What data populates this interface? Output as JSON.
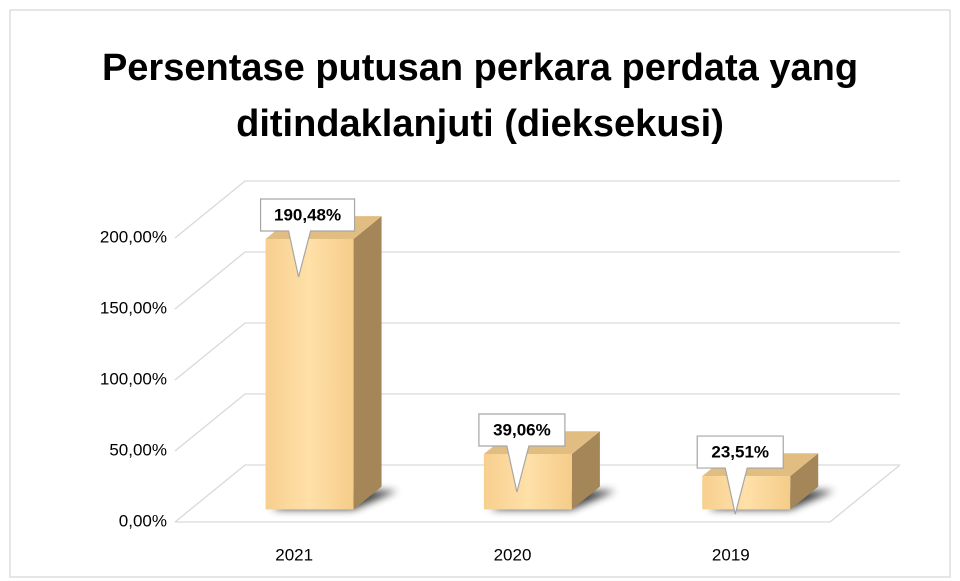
{
  "chart_data": {
    "type": "bar3d",
    "title": "Persentase putusan perkara perdata yang ditindaklanjuti (dieksekusi)",
    "categories": [
      "2021",
      "2020",
      "2019"
    ],
    "values": [
      190.48,
      39.06,
      23.51
    ],
    "value_labels": [
      "190,48%",
      "39,06%",
      "23,51%"
    ],
    "color": "#ffe0a8",
    "ylim": [
      0,
      200
    ],
    "yticks": [
      {
        "value": 0,
        "label": "0,00%"
      },
      {
        "value": 50,
        "label": "50,00%"
      },
      {
        "value": 100,
        "label": "100,00%"
      },
      {
        "value": 150,
        "label": "150,00%"
      },
      {
        "value": 200,
        "label": "200,00%"
      }
    ],
    "grid": true
  }
}
